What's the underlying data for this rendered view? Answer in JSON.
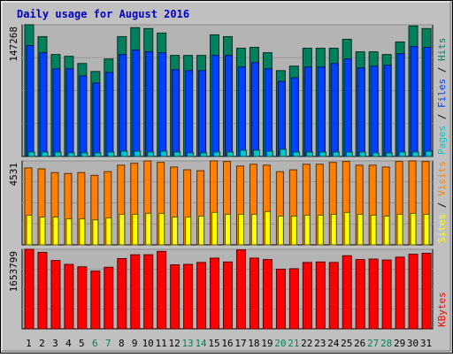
{
  "chart_data": [
    {
      "type": "bar",
      "title": "Daily usage for August 2016",
      "ylim": [
        0,
        147268
      ],
      "y_tick_label": "147268",
      "categories": [
        "1",
        "2",
        "3",
        "4",
        "5",
        "6",
        "7",
        "8",
        "9",
        "10",
        "11",
        "12",
        "13",
        "14",
        "15",
        "16",
        "17",
        "18",
        "19",
        "20",
        "21",
        "22",
        "23",
        "24",
        "25",
        "26",
        "27",
        "28",
        "29",
        "30",
        "31"
      ],
      "weekend_days": [
        "6",
        "7",
        "13",
        "14",
        "20",
        "21",
        "27",
        "28"
      ],
      "series": [
        {
          "name": "Hits",
          "values": [
            147268,
            134000,
            114000,
            112000,
            104000,
            95000,
            109000,
            134000,
            144000,
            143000,
            138000,
            113000,
            113000,
            113000,
            136000,
            134000,
            121000,
            122000,
            116000,
            96000,
            101000,
            121000,
            121000,
            121000,
            131000,
            117000,
            117000,
            114000,
            128000,
            146000,
            143000
          ]
        },
        {
          "name": "Files",
          "values": [
            124000,
            116000,
            98000,
            98000,
            90000,
            82000,
            94000,
            114000,
            119000,
            117000,
            116000,
            97000,
            96000,
            96000,
            113000,
            113000,
            100000,
            105000,
            98000,
            84000,
            88000,
            100000,
            100000,
            104000,
            109000,
            99000,
            101000,
            102000,
            115000,
            123000,
            122000
          ]
        },
        {
          "name": "Pages",
          "values": [
            5000,
            5000,
            5000,
            4000,
            4000,
            4000,
            5000,
            6000,
            6000,
            5000,
            6000,
            5000,
            4000,
            4000,
            5000,
            5000,
            7000,
            7000,
            6000,
            8000,
            5000,
            5000,
            5000,
            5000,
            5000,
            5000,
            4000,
            4000,
            5000,
            5000,
            6000
          ]
        }
      ],
      "legend": [
        "Pages",
        "Files",
        "Hits"
      ]
    },
    {
      "type": "bar",
      "ylim": [
        0,
        4531
      ],
      "y_tick_label": "4531",
      "categories": [
        "1",
        "2",
        "3",
        "4",
        "5",
        "6",
        "7",
        "8",
        "9",
        "10",
        "11",
        "12",
        "13",
        "14",
        "15",
        "16",
        "17",
        "18",
        "19",
        "20",
        "21",
        "22",
        "23",
        "24",
        "25",
        "26",
        "27",
        "28",
        "29",
        "30",
        "31"
      ],
      "series": [
        {
          "name": "Visits",
          "values": [
            4150,
            4100,
            3900,
            3850,
            3900,
            3750,
            3950,
            4300,
            4400,
            4531,
            4450,
            4200,
            4050,
            4000,
            4531,
            4500,
            4250,
            4350,
            4300,
            3950,
            4050,
            4350,
            4350,
            4450,
            4500,
            4300,
            4300,
            4200,
            4500,
            4531,
            4500
          ]
        },
        {
          "name": "Sites",
          "values": [
            1600,
            1500,
            1500,
            1400,
            1400,
            1350,
            1450,
            1650,
            1650,
            1700,
            1700,
            1500,
            1500,
            1550,
            1750,
            1650,
            1650,
            1650,
            1800,
            1550,
            1550,
            1600,
            1600,
            1650,
            1750,
            1650,
            1600,
            1550,
            1650,
            1700,
            1650
          ]
        }
      ],
      "legend": [
        "Sites",
        "Visits"
      ]
    },
    {
      "type": "bar",
      "ylim": [
        0,
        1653799
      ],
      "y_tick_label": "1653799",
      "categories": [
        "1",
        "2",
        "3",
        "4",
        "5",
        "6",
        "7",
        "8",
        "9",
        "10",
        "11",
        "12",
        "13",
        "14",
        "15",
        "16",
        "17",
        "18",
        "19",
        "20",
        "21",
        "22",
        "23",
        "24",
        "25",
        "26",
        "27",
        "28",
        "29",
        "30",
        "31"
      ],
      "series": [
        {
          "name": "KBytes",
          "values": [
            1653799,
            1590000,
            1420000,
            1340000,
            1290000,
            1200000,
            1280000,
            1460000,
            1540000,
            1540000,
            1610000,
            1330000,
            1340000,
            1380000,
            1470000,
            1390000,
            1640000,
            1470000,
            1440000,
            1240000,
            1250000,
            1380000,
            1390000,
            1380000,
            1520000,
            1440000,
            1450000,
            1430000,
            1490000,
            1550000,
            1570000
          ]
        }
      ],
      "legend": [
        "KBytes"
      ]
    }
  ],
  "colors": {
    "background": "#c0c0c0",
    "plot_background": "#b4b4b4",
    "title": "#0000c0",
    "axis_label": "#000000",
    "weekend_label": "#00805c",
    "hits": "#00805c",
    "files": "#0040ff",
    "pages": "#00c8c8",
    "visits": "#ff8000",
    "sites": "#ffff00",
    "kbytes": "#ff0000",
    "legend_separator": "#000000"
  },
  "legend_separator": "/"
}
